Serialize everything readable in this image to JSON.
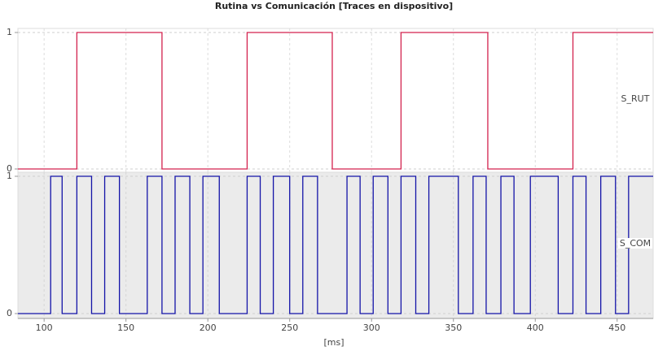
{
  "chart_data": [
    {
      "type": "line",
      "title": "Rutina vs Comunicación [Traces en dispositivo]",
      "xlim": [
        84,
        472
      ],
      "ylim": [
        0,
        1
      ],
      "yticks": [
        0,
        1
      ],
      "grid": true,
      "x": [
        84,
        120,
        120,
        172,
        172,
        224,
        224,
        276,
        276,
        318,
        318,
        371,
        371,
        423,
        423,
        472
      ],
      "series": [
        {
          "name": "S_RUT",
          "color": "#d3224e",
          "values": [
            0,
            0,
            1,
            1,
            0,
            0,
            1,
            1,
            0,
            0,
            1,
            1,
            0,
            0,
            1,
            1
          ]
        }
      ]
    },
    {
      "type": "line",
      "xlabel": "[ms]",
      "xlim": [
        84,
        472
      ],
      "xticks": [
        100,
        150,
        200,
        250,
        300,
        350,
        400,
        450
      ],
      "ylim": [
        0,
        1
      ],
      "yticks": [
        0,
        1
      ],
      "grid": true,
      "x": [
        84,
        104,
        104,
        111,
        111,
        120,
        120,
        129,
        129,
        137,
        137,
        146,
        146,
        163,
        163,
        172,
        172,
        180,
        180,
        189,
        189,
        197,
        197,
        207,
        207,
        224,
        224,
        232,
        232,
        240,
        240,
        250,
        250,
        258,
        258,
        267,
        267,
        285,
        285,
        293,
        293,
        301,
        301,
        310,
        310,
        318,
        318,
        327,
        327,
        335,
        335,
        353,
        353,
        362,
        362,
        370,
        370,
        379,
        379,
        387,
        387,
        397,
        397,
        414,
        414,
        423,
        423,
        431,
        431,
        440,
        440,
        449,
        449,
        457,
        457,
        472
      ],
      "series": [
        {
          "name": "S_COM",
          "color": "#1414a8",
          "values": [
            0,
            0,
            1,
            1,
            0,
            0,
            1,
            1,
            0,
            0,
            1,
            1,
            0,
            0,
            1,
            1,
            0,
            0,
            1,
            1,
            0,
            0,
            1,
            1,
            0,
            0,
            1,
            1,
            0,
            0,
            1,
            1,
            0,
            0,
            1,
            1,
            0,
            0,
            1,
            1,
            0,
            0,
            1,
            1,
            0,
            0,
            1,
            1,
            0,
            0,
            1,
            1,
            0,
            0,
            1,
            1,
            0,
            0,
            1,
            1,
            0,
            0,
            1,
            1,
            0,
            0,
            1,
            1,
            0,
            0,
            1,
            1,
            0,
            0,
            1,
            1
          ]
        }
      ]
    }
  ]
}
